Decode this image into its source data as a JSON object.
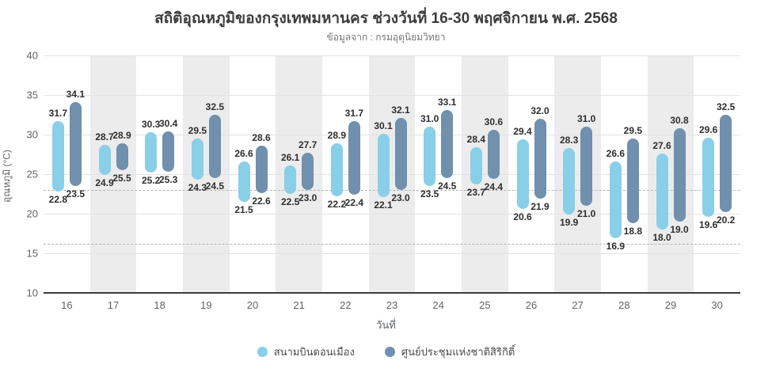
{
  "title": "สถิติอุณหภูมิของกรุงเทพมหานคร ช่วงวันที่ 16-30 พฤศจิกายน พ.ศ. 2568",
  "subtitle": "ข้อมูลจาก : กรมอุตุนิยมวิทยา",
  "colors": {
    "series_light": "#89cfe8",
    "series_dark": "#7090ad",
    "stripe": "#ececec",
    "grid": "#e2e2e2",
    "dashed_reference": "#b5b5b5",
    "axis": "#3c3c3c",
    "value_label": "#2e2e2e",
    "tick_label": "#5f6368"
  },
  "chart_data": {
    "type": "bar",
    "subtype": "floating-range-bars",
    "title": "สถิติอุณหภูมิของกรุงเทพมหานคร ช่วงวันที่ 16-30 พฤศจิกายน พ.ศ. 2568",
    "subtitle": "ข้อมูลจาก : กรมอุตุนิยมวิทยา",
    "xlabel": "วันที่",
    "ylabel": "อุณหภูมิ (°C)",
    "ylim": [
      10,
      40
    ],
    "y_ticks": [
      40,
      35,
      30,
      25,
      20,
      15,
      10
    ],
    "grid": "horizontal",
    "reference_lines_dashed": [
      23.0,
      16.2
    ],
    "striped_categories": [
      17,
      19,
      21,
      23,
      25,
      27,
      29
    ],
    "categories": [
      16,
      17,
      18,
      19,
      20,
      21,
      22,
      23,
      24,
      25,
      26,
      27,
      28,
      29,
      30
    ],
    "series": [
      {
        "name": "สนามบินดอนเมือง",
        "color": "#89cfe8",
        "ranges": [
          [
            22.8,
            31.7
          ],
          [
            24.9,
            28.7
          ],
          [
            25.2,
            30.3
          ],
          [
            24.3,
            29.5
          ],
          [
            21.5,
            26.6
          ],
          [
            22.5,
            26.1
          ],
          [
            22.2,
            28.9
          ],
          [
            22.1,
            30.1
          ],
          [
            23.5,
            31.0
          ],
          [
            23.7,
            28.4
          ],
          [
            20.6,
            29.4
          ],
          [
            19.9,
            28.3
          ],
          [
            16.9,
            26.6
          ],
          [
            18.0,
            27.6
          ],
          [
            19.6,
            29.6
          ]
        ]
      },
      {
        "name": "ศูนย์ประชุมแห่งชาติสิริกิติ์",
        "color": "#7090ad",
        "ranges": [
          [
            23.5,
            34.1
          ],
          [
            25.5,
            28.9
          ],
          [
            25.3,
            30.4
          ],
          [
            24.5,
            32.5
          ],
          [
            22.6,
            28.6
          ],
          [
            23.0,
            27.7
          ],
          [
            22.4,
            31.7
          ],
          [
            23.0,
            32.1
          ],
          [
            24.5,
            33.1
          ],
          [
            24.4,
            30.6
          ],
          [
            21.9,
            32.0
          ],
          [
            21.0,
            31.0
          ],
          [
            18.8,
            29.5
          ],
          [
            19.0,
            30.8
          ],
          [
            20.2,
            32.5
          ]
        ]
      }
    ],
    "legend_position": "bottom"
  },
  "legend": {
    "items": [
      {
        "label": "สนามบินดอนเมือง"
      },
      {
        "label": "ศูนย์ประชุมแห่งชาติสิริกิติ์"
      }
    ]
  }
}
